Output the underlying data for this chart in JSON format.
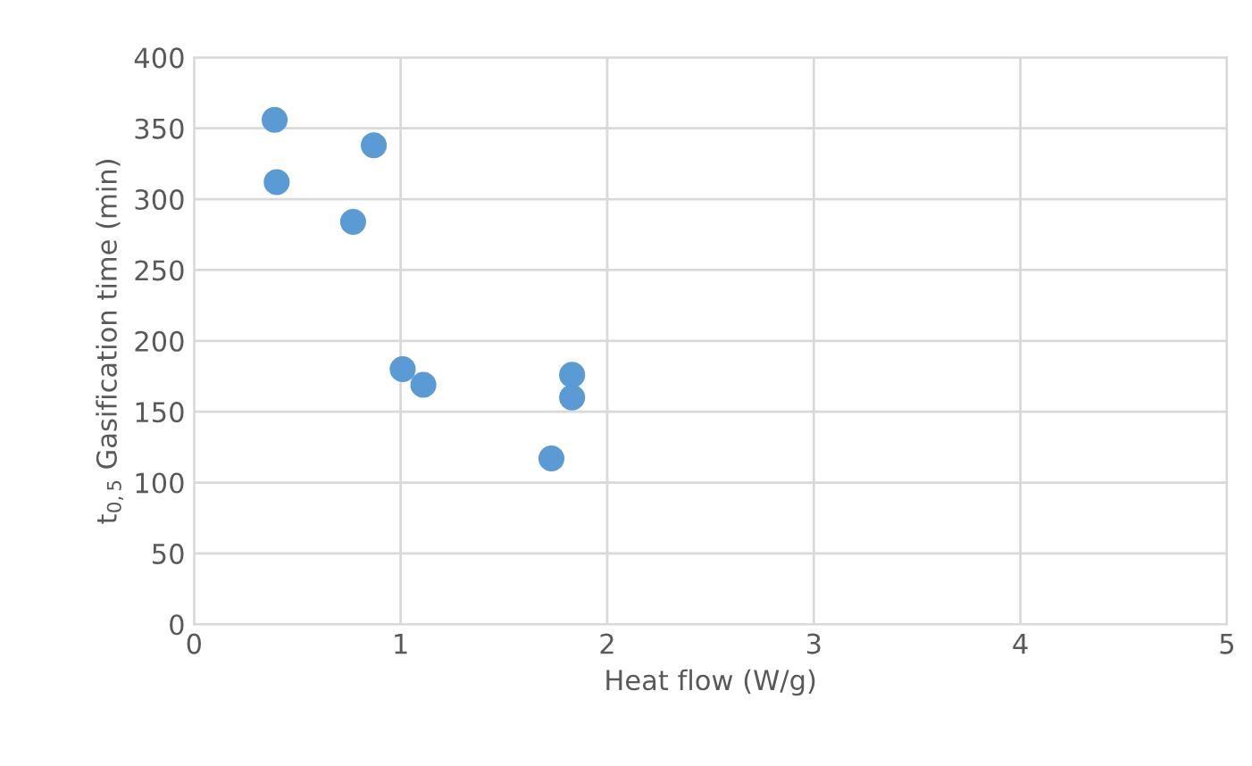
{
  "chart_data": {
    "type": "scatter",
    "xlabel": "Heat flow (W/g)",
    "ylabel": "t$_{0,5}$ Gasification time (min)",
    "series": [
      {
        "color": "#5b9bd5",
        "x": [
          0.39,
          0.87,
          0.4,
          0.77,
          1.01,
          1.11,
          1.83,
          1.83,
          1.73
        ],
        "values": [
          356,
          338,
          312,
          284,
          180,
          169,
          176,
          160,
          117
        ]
      }
    ],
    "xlim": [
      0,
      5
    ],
    "xticks": [
      0,
      1,
      2,
      3,
      4,
      5
    ],
    "ylim": [
      0,
      400
    ],
    "yticks": [
      0,
      50,
      100,
      150,
      200,
      250,
      300,
      350,
      400
    ],
    "grid": true,
    "marker": "circle"
  }
}
